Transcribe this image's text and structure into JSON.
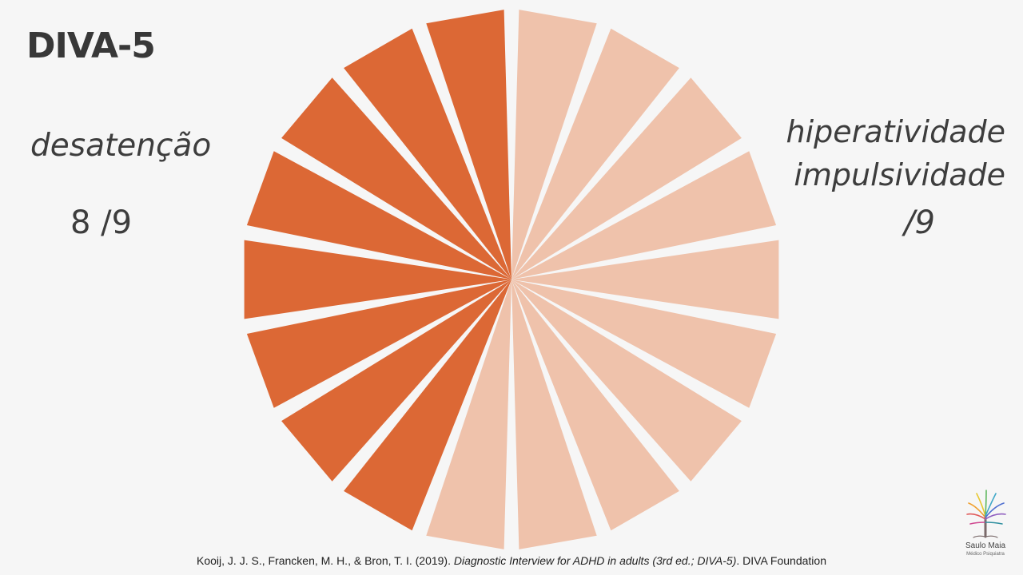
{
  "slide": {
    "title": "DIVA-5",
    "left_label": "desatenção",
    "left_score": "8 /9",
    "right_label_line1": "hiperatividade",
    "right_label_line2": "impulsividade",
    "right_score": "/9",
    "citation_authors": "Kooij, J. J. S., Francken, M. H., & Bron, T. I. (2019). ",
    "citation_title": "Diagnostic Interview for ADHD in adults (3rd ed.; DIVA-5)",
    "citation_publisher": ". DIVA Foundation"
  },
  "wheel": {
    "total_segments": 18,
    "active_segments": 8,
    "active_color": "#dc6835",
    "inactive_color": "#efc2ab"
  },
  "logo": {
    "name": "Saulo Maia",
    "subtitle": "Médico Psiquiatra"
  }
}
